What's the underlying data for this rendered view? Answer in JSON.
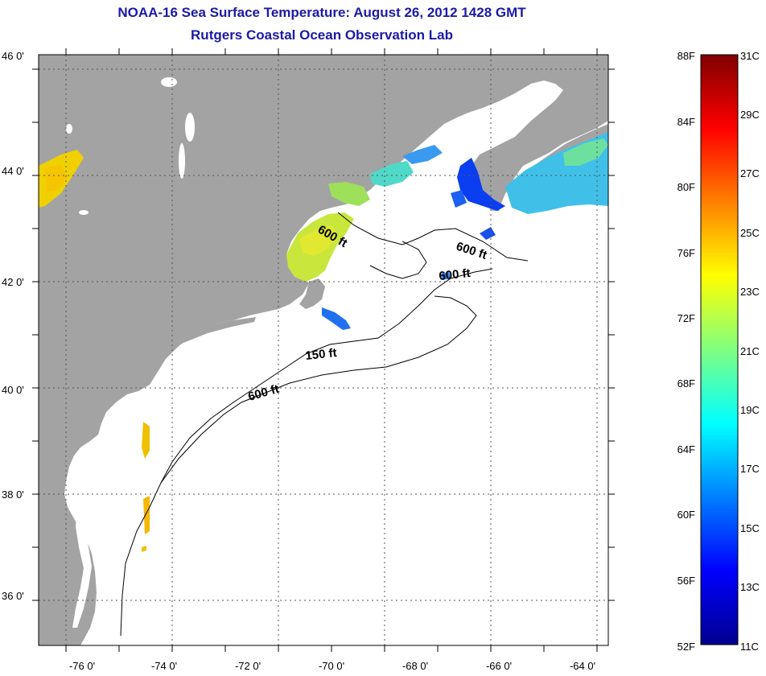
{
  "title": {
    "line1": "NOAA-16 Sea Surface Temperature:  August 26, 2012 1428 GMT",
    "line2": "Rutgers Coastal Ocean Observation Lab"
  },
  "map": {
    "lat_labels": [
      "46 0'",
      "44 0'",
      "42 0'",
      "40 0'",
      "38 0'",
      "36 0'"
    ],
    "lon_labels": [
      "-76 0'",
      "-74 0'",
      "-72 0'",
      "-70 0'",
      "-68 0'",
      "-66 0'",
      "-64 0'"
    ],
    "lat_range": [
      35,
      46
    ],
    "lon_range": [
      -77,
      -63
    ],
    "contour_labels": [
      "600 ft",
      "600 ft",
      "600 ft",
      "150 ft",
      "600 ft"
    ],
    "colors": {
      "land": "#a3a3a3",
      "ocean": "#ffffff",
      "grid": "#555555"
    }
  },
  "colorbar": {
    "fahrenheit_labels": [
      "88F",
      "84F",
      "80F",
      "76F",
      "72F",
      "68F",
      "64F",
      "60F",
      "56F",
      "52F"
    ],
    "celsius_labels": [
      "31C",
      "29C",
      "27C",
      "25C",
      "23C",
      "21C",
      "19C",
      "17C",
      "15C",
      "13C",
      "11C"
    ],
    "range_c": [
      11,
      31
    ],
    "colormap": "jet"
  }
}
